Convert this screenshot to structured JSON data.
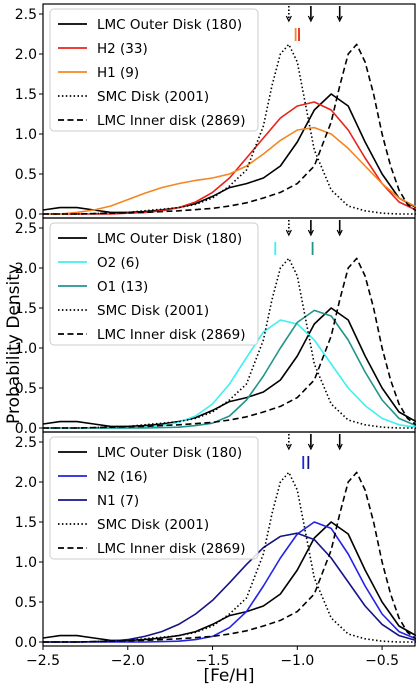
{
  "figure": {
    "ylabel": "Probability Density",
    "xlabel": "[Fe/H]",
    "xticks": [
      "−2.5",
      "−2.0",
      "−1.5",
      "−1.0",
      "−0.5"
    ],
    "yticks": [
      "0.0",
      "0.5",
      "1.0",
      "1.5",
      "2.0",
      "2.5"
    ]
  },
  "chart_data": [
    {
      "type": "line",
      "xlim": [
        -2.5,
        -0.3
      ],
      "ylim": [
        0,
        2.6
      ],
      "legend_position": "top-left",
      "series": [
        {
          "name": "LMC Outer Disk (180)",
          "color": "#000000",
          "dash": "solid",
          "x": [
            -2.5,
            -2.4,
            -2.3,
            -2.2,
            -2.1,
            -2.0,
            -1.9,
            -1.8,
            -1.7,
            -1.6,
            -1.5,
            -1.4,
            -1.3,
            -1.2,
            -1.1,
            -1.0,
            -0.9,
            -0.8,
            -0.7,
            -0.6,
            -0.5,
            -0.4,
            -0.3
          ],
          "y": [
            0.05,
            0.08,
            0.08,
            0.05,
            0.02,
            0.02,
            0.03,
            0.05,
            0.08,
            0.13,
            0.22,
            0.33,
            0.38,
            0.45,
            0.6,
            0.9,
            1.3,
            1.5,
            1.35,
            0.9,
            0.5,
            0.2,
            0.08
          ]
        },
        {
          "name": "H2 (33)",
          "color": "#e8231a",
          "dash": "solid",
          "x": [
            -2.5,
            -2.4,
            -2.3,
            -2.2,
            -2.1,
            -2.0,
            -1.9,
            -1.8,
            -1.7,
            -1.6,
            -1.5,
            -1.4,
            -1.3,
            -1.2,
            -1.1,
            -1.0,
            -0.9,
            -0.8,
            -0.7,
            -0.6,
            -0.5,
            -0.4,
            -0.3
          ],
          "y": [
            0.0,
            0.0,
            0.0,
            0.0,
            0.0,
            0.01,
            0.02,
            0.04,
            0.08,
            0.15,
            0.27,
            0.45,
            0.7,
            0.95,
            1.2,
            1.35,
            1.4,
            1.3,
            1.05,
            0.7,
            0.38,
            0.15,
            0.05
          ]
        },
        {
          "name": "H1 (9)",
          "color": "#f5861f",
          "dash": "solid",
          "x": [
            -2.5,
            -2.4,
            -2.3,
            -2.2,
            -2.1,
            -2.0,
            -1.9,
            -1.8,
            -1.7,
            -1.6,
            -1.5,
            -1.4,
            -1.3,
            -1.2,
            -1.1,
            -1.0,
            -0.9,
            -0.8,
            -0.7,
            -0.6,
            -0.5,
            -0.4,
            -0.3
          ],
          "y": [
            0.0,
            0.0,
            0.02,
            0.05,
            0.1,
            0.18,
            0.26,
            0.33,
            0.38,
            0.42,
            0.45,
            0.5,
            0.6,
            0.75,
            0.92,
            1.05,
            1.08,
            1.0,
            0.82,
            0.6,
            0.38,
            0.2,
            0.09
          ]
        },
        {
          "name": "SMC Disk (2001)",
          "color": "#000000",
          "dash": "dotted",
          "x": [
            -2.5,
            -2.3,
            -2.1,
            -2.0,
            -1.9,
            -1.8,
            -1.7,
            -1.6,
            -1.5,
            -1.4,
            -1.3,
            -1.2,
            -1.15,
            -1.1,
            -1.05,
            -1.0,
            -0.95,
            -0.9,
            -0.8,
            -0.7,
            -0.6,
            -0.5,
            -0.4,
            -0.3
          ],
          "y": [
            0.0,
            0.0,
            0.01,
            0.02,
            0.04,
            0.06,
            0.08,
            0.12,
            0.2,
            0.35,
            0.55,
            1.1,
            1.6,
            2.0,
            2.12,
            1.9,
            1.35,
            0.8,
            0.3,
            0.1,
            0.04,
            0.01,
            0.0,
            0.0
          ]
        },
        {
          "name": "LMC Inner disk (2869)",
          "color": "#000000",
          "dash": "dashed",
          "x": [
            -2.5,
            -2.3,
            -2.1,
            -1.9,
            -1.7,
            -1.5,
            -1.4,
            -1.3,
            -1.2,
            -1.1,
            -1.0,
            -0.9,
            -0.8,
            -0.75,
            -0.7,
            -0.65,
            -0.6,
            -0.55,
            -0.5,
            -0.45,
            -0.4,
            -0.35,
            -0.3
          ],
          "y": [
            0.0,
            0.0,
            0.01,
            0.02,
            0.04,
            0.07,
            0.1,
            0.14,
            0.2,
            0.27,
            0.38,
            0.6,
            1.15,
            1.6,
            2.0,
            2.12,
            1.9,
            1.5,
            1.0,
            0.6,
            0.3,
            0.12,
            0.04
          ]
        }
      ],
      "markers": [
        {
          "x": -1.05,
          "style": "dotted",
          "color": "#000000"
        },
        {
          "x": -0.92,
          "style": "solid",
          "color": "#000000"
        },
        {
          "x": -0.75,
          "style": "solid",
          "color": "#000000"
        },
        {
          "x": -1.01,
          "style": "short",
          "color": "#f5861f"
        },
        {
          "x": -0.99,
          "style": "short",
          "color": "#e8231a"
        }
      ]
    },
    {
      "type": "line",
      "xlim": [
        -2.5,
        -0.3
      ],
      "ylim": [
        0,
        2.6
      ],
      "legend_position": "top-left",
      "series": [
        {
          "name": "LMC Outer Disk (180)",
          "color": "#000000",
          "dash": "solid",
          "x": [
            -2.5,
            -2.4,
            -2.3,
            -2.2,
            -2.1,
            -2.0,
            -1.9,
            -1.8,
            -1.7,
            -1.6,
            -1.5,
            -1.4,
            -1.3,
            -1.2,
            -1.1,
            -1.0,
            -0.9,
            -0.8,
            -0.7,
            -0.6,
            -0.5,
            -0.4,
            -0.3
          ],
          "y": [
            0.05,
            0.08,
            0.08,
            0.05,
            0.02,
            0.02,
            0.03,
            0.05,
            0.08,
            0.13,
            0.22,
            0.33,
            0.38,
            0.45,
            0.6,
            0.9,
            1.3,
            1.5,
            1.35,
            0.9,
            0.5,
            0.2,
            0.08
          ]
        },
        {
          "name": "O2 (6)",
          "color": "#3ef0f0",
          "dash": "solid",
          "x": [
            -2.5,
            -2.3,
            -2.1,
            -2.0,
            -1.9,
            -1.8,
            -1.7,
            -1.6,
            -1.5,
            -1.4,
            -1.3,
            -1.2,
            -1.1,
            -1.0,
            -0.9,
            -0.8,
            -0.7,
            -0.6,
            -0.5,
            -0.4,
            -0.3
          ],
          "y": [
            0.0,
            0.0,
            0.0,
            0.0,
            0.01,
            0.03,
            0.07,
            0.15,
            0.3,
            0.55,
            0.88,
            1.2,
            1.35,
            1.3,
            1.1,
            0.8,
            0.5,
            0.28,
            0.12,
            0.04,
            0.01
          ]
        },
        {
          "name": "O1 (13)",
          "color": "#21948c",
          "dash": "solid",
          "x": [
            -2.5,
            -2.3,
            -2.1,
            -1.9,
            -1.7,
            -1.6,
            -1.5,
            -1.4,
            -1.3,
            -1.2,
            -1.1,
            -1.0,
            -0.9,
            -0.8,
            -0.7,
            -0.6,
            -0.5,
            -0.4,
            -0.3
          ],
          "y": [
            0.0,
            0.0,
            0.0,
            0.0,
            0.01,
            0.03,
            0.06,
            0.15,
            0.35,
            0.65,
            1.0,
            1.32,
            1.47,
            1.4,
            1.1,
            0.7,
            0.35,
            0.12,
            0.03
          ]
        },
        {
          "name": "SMC Disk (2001)",
          "color": "#000000",
          "dash": "dotted",
          "x": [
            -2.5,
            -2.3,
            -2.1,
            -2.0,
            -1.9,
            -1.8,
            -1.7,
            -1.6,
            -1.5,
            -1.4,
            -1.3,
            -1.2,
            -1.15,
            -1.1,
            -1.05,
            -1.0,
            -0.95,
            -0.9,
            -0.8,
            -0.7,
            -0.6,
            -0.5,
            -0.4,
            -0.3
          ],
          "y": [
            0.0,
            0.0,
            0.01,
            0.02,
            0.04,
            0.06,
            0.08,
            0.12,
            0.2,
            0.35,
            0.55,
            1.1,
            1.6,
            2.0,
            2.12,
            1.9,
            1.35,
            0.8,
            0.3,
            0.1,
            0.04,
            0.01,
            0.0,
            0.0
          ]
        },
        {
          "name": "LMC Inner disk (2869)",
          "color": "#000000",
          "dash": "dashed",
          "x": [
            -2.5,
            -2.3,
            -2.1,
            -1.9,
            -1.7,
            -1.5,
            -1.4,
            -1.3,
            -1.2,
            -1.1,
            -1.0,
            -0.9,
            -0.8,
            -0.75,
            -0.7,
            -0.65,
            -0.6,
            -0.55,
            -0.5,
            -0.45,
            -0.4,
            -0.35,
            -0.3
          ],
          "y": [
            0.0,
            0.0,
            0.01,
            0.02,
            0.04,
            0.07,
            0.1,
            0.14,
            0.2,
            0.27,
            0.38,
            0.6,
            1.15,
            1.6,
            2.0,
            2.12,
            1.9,
            1.5,
            1.0,
            0.6,
            0.3,
            0.12,
            0.04
          ]
        }
      ],
      "markers": [
        {
          "x": -1.05,
          "style": "dotted",
          "color": "#000000"
        },
        {
          "x": -0.92,
          "style": "solid",
          "color": "#000000"
        },
        {
          "x": -0.75,
          "style": "solid",
          "color": "#000000"
        },
        {
          "x": -1.13,
          "style": "short",
          "color": "#3ef0f0"
        },
        {
          "x": -0.91,
          "style": "short",
          "color": "#21948c"
        }
      ]
    },
    {
      "type": "line",
      "xlim": [
        -2.5,
        -0.3
      ],
      "ylim": [
        0,
        2.6
      ],
      "legend_position": "top-left",
      "series": [
        {
          "name": "LMC Outer Disk (180)",
          "color": "#000000",
          "dash": "solid",
          "x": [
            -2.5,
            -2.4,
            -2.3,
            -2.2,
            -2.1,
            -2.0,
            -1.9,
            -1.8,
            -1.7,
            -1.6,
            -1.5,
            -1.4,
            -1.3,
            -1.2,
            -1.1,
            -1.0,
            -0.9,
            -0.8,
            -0.7,
            -0.6,
            -0.5,
            -0.4,
            -0.3
          ],
          "y": [
            0.05,
            0.08,
            0.08,
            0.05,
            0.02,
            0.02,
            0.03,
            0.05,
            0.08,
            0.13,
            0.22,
            0.33,
            0.38,
            0.45,
            0.6,
            0.9,
            1.3,
            1.5,
            1.35,
            0.9,
            0.5,
            0.2,
            0.08
          ]
        },
        {
          "name": "N2 (16)",
          "color": "#2323e6",
          "dash": "solid",
          "x": [
            -2.5,
            -2.3,
            -2.1,
            -1.9,
            -1.7,
            -1.6,
            -1.5,
            -1.4,
            -1.3,
            -1.2,
            -1.1,
            -1.0,
            -0.9,
            -0.8,
            -0.7,
            -0.6,
            -0.5,
            -0.4,
            -0.3
          ],
          "y": [
            0.0,
            0.0,
            0.0,
            0.0,
            0.01,
            0.03,
            0.07,
            0.18,
            0.38,
            0.7,
            1.05,
            1.35,
            1.5,
            1.42,
            1.1,
            0.7,
            0.35,
            0.13,
            0.04
          ]
        },
        {
          "name": "N1 (7)",
          "color": "#141487",
          "dash": "solid",
          "x": [
            -2.5,
            -2.3,
            -2.1,
            -2.0,
            -1.9,
            -1.8,
            -1.7,
            -1.6,
            -1.5,
            -1.4,
            -1.3,
            -1.2,
            -1.1,
            -1.0,
            -0.9,
            -0.8,
            -0.7,
            -0.6,
            -0.5,
            -0.4,
            -0.3
          ],
          "y": [
            0.0,
            0.0,
            0.01,
            0.03,
            0.07,
            0.13,
            0.22,
            0.35,
            0.52,
            0.74,
            0.97,
            1.18,
            1.32,
            1.36,
            1.28,
            1.05,
            0.75,
            0.45,
            0.22,
            0.08,
            0.02
          ]
        },
        {
          "name": "SMC Disk (2001)",
          "color": "#000000",
          "dash": "dotted",
          "x": [
            -2.5,
            -2.3,
            -2.1,
            -2.0,
            -1.9,
            -1.8,
            -1.7,
            -1.6,
            -1.5,
            -1.4,
            -1.3,
            -1.2,
            -1.15,
            -1.1,
            -1.05,
            -1.0,
            -0.95,
            -0.9,
            -0.8,
            -0.7,
            -0.6,
            -0.5,
            -0.4,
            -0.3
          ],
          "y": [
            0.0,
            0.0,
            0.01,
            0.02,
            0.04,
            0.06,
            0.08,
            0.12,
            0.2,
            0.35,
            0.55,
            1.1,
            1.6,
            2.0,
            2.12,
            1.9,
            1.35,
            0.8,
            0.3,
            0.1,
            0.04,
            0.01,
            0.0,
            0.0
          ]
        },
        {
          "name": "LMC Inner disk (2869)",
          "color": "#000000",
          "dash": "dashed",
          "x": [
            -2.5,
            -2.3,
            -2.1,
            -1.9,
            -1.7,
            -1.5,
            -1.4,
            -1.3,
            -1.2,
            -1.1,
            -1.0,
            -0.9,
            -0.8,
            -0.75,
            -0.7,
            -0.65,
            -0.6,
            -0.55,
            -0.5,
            -0.45,
            -0.4,
            -0.35,
            -0.3
          ],
          "y": [
            0.0,
            0.0,
            0.01,
            0.02,
            0.04,
            0.07,
            0.1,
            0.14,
            0.2,
            0.27,
            0.38,
            0.6,
            1.15,
            1.6,
            2.0,
            2.12,
            1.9,
            1.5,
            1.0,
            0.6,
            0.3,
            0.12,
            0.04
          ]
        }
      ],
      "markers": [
        {
          "x": -1.05,
          "style": "dotted",
          "color": "#000000"
        },
        {
          "x": -0.92,
          "style": "solid",
          "color": "#000000"
        },
        {
          "x": -0.75,
          "style": "solid",
          "color": "#000000"
        },
        {
          "x": -0.965,
          "style": "short",
          "color": "#2323e6"
        },
        {
          "x": -0.935,
          "style": "short",
          "color": "#141487"
        }
      ]
    }
  ]
}
